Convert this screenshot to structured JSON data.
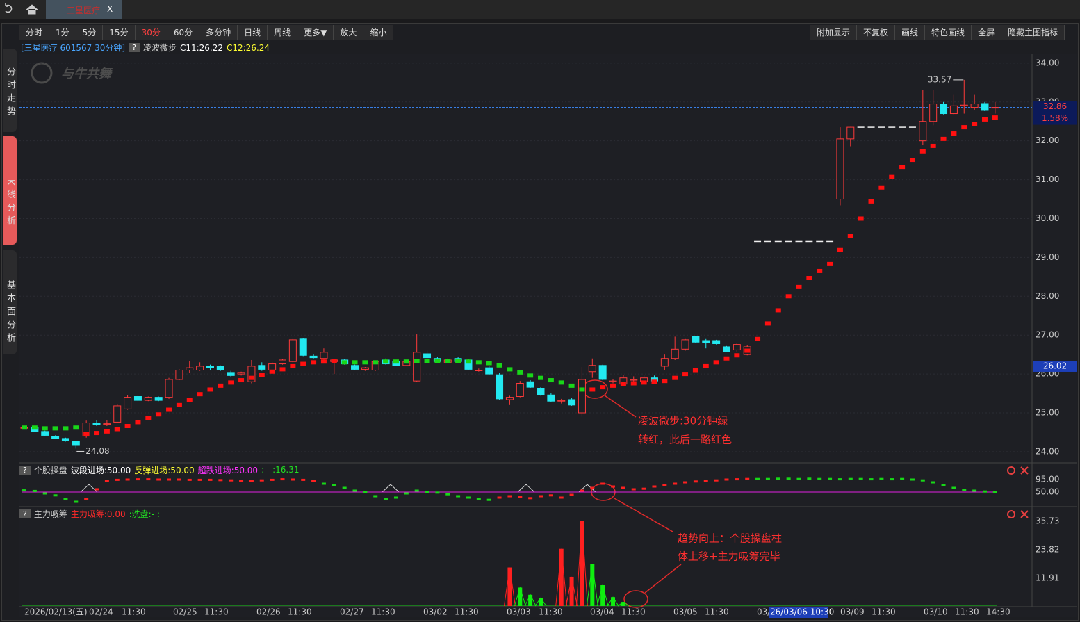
{
  "window": {
    "tab": "三星医疗",
    "close": "X"
  },
  "toolbar": {
    "left": [
      "分时",
      "1分",
      "5分",
      "15分",
      "30分",
      "60分",
      "多分钟",
      "日线",
      "周线",
      "更多▼",
      "放大",
      "缩小"
    ],
    "right": [
      "附加显示",
      "不复权",
      "画线",
      "特色画线",
      "全屏",
      "隐藏主图指标"
    ]
  },
  "side_tabs": [
    "分时走势",
    "K线分析",
    "基本面分析"
  ],
  "watermark": "与牛共舞",
  "chart_data": [
    {
      "type": "candlestick",
      "title": "[三星医疗 601567 30分钟]",
      "help": "?",
      "indicator": "凌波微步",
      "indicator_values": [
        "C11:26.22",
        "C12:26.24"
      ],
      "ylim": [
        23.73,
        34.23
      ],
      "yticks": [
        {
          "value": 24,
          "label": "24.00"
        },
        {
          "value": 25,
          "label": "25.00"
        },
        {
          "value": 26,
          "label": "26.00"
        },
        {
          "value": 27,
          "label": "27.00"
        },
        {
          "value": 28,
          "label": "28.00"
        },
        {
          "value": 29,
          "label": "29.00"
        },
        {
          "value": 30,
          "label": "30.00"
        },
        {
          "value": 31,
          "label": "31.00"
        },
        {
          "value": 32,
          "label": "32.00"
        },
        {
          "value": 33,
          "label": "33.00"
        },
        {
          "value": 34,
          "label": "34.00"
        }
      ],
      "last_price": 32.86,
      "change": "1.58%",
      "cursor_price": 26.02,
      "high_label": 33.57,
      "low_label": 24.08,
      "up_color": "#ff3a3a",
      "down_color": "#22e8f0",
      "trend_up_color": "#ff1010",
      "trend_down_color": "#19d619",
      "candles": [
        [
          24.62,
          24.66,
          24.58,
          24.62
        ],
        [
          24.62,
          24.64,
          24.5,
          24.52
        ],
        [
          24.52,
          24.54,
          24.4,
          24.42
        ],
        [
          24.4,
          24.42,
          24.32,
          24.34
        ],
        [
          24.34,
          24.36,
          24.26,
          24.28
        ],
        [
          24.26,
          24.28,
          24.08,
          24.16
        ],
        [
          24.4,
          24.8,
          24.36,
          24.74
        ],
        [
          24.74,
          24.82,
          24.66,
          24.7
        ],
        [
          24.7,
          24.82,
          24.66,
          24.72
        ],
        [
          24.76,
          25.22,
          24.74,
          25.18
        ],
        [
          25.1,
          25.45,
          25.08,
          25.4
        ],
        [
          25.42,
          25.44,
          25.3,
          25.32
        ],
        [
          25.32,
          25.42,
          25.3,
          25.4
        ],
        [
          25.4,
          25.42,
          25.3,
          25.32
        ],
        [
          25.4,
          25.9,
          25.36,
          25.86
        ],
        [
          25.86,
          26.12,
          25.84,
          26.1
        ],
        [
          26.1,
          26.34,
          26.02,
          26.16
        ],
        [
          26.1,
          26.3,
          26.08,
          26.2
        ],
        [
          26.2,
          26.24,
          26.1,
          26.16
        ],
        [
          26.2,
          26.22,
          26.08,
          26.1
        ],
        [
          26.04,
          26.08,
          25.92,
          25.96
        ],
        [
          26.0,
          26.06,
          25.96,
          26.04
        ],
        [
          25.8,
          26.36,
          25.76,
          26.2
        ],
        [
          26.22,
          26.3,
          26.08,
          26.12
        ],
        [
          26.1,
          26.3,
          26.06,
          26.26
        ],
        [
          26.26,
          26.38,
          26.24,
          26.36
        ],
        [
          26.32,
          26.9,
          26.3,
          26.88
        ],
        [
          26.9,
          26.92,
          26.46,
          26.48
        ],
        [
          26.46,
          26.5,
          26.4,
          26.42
        ],
        [
          26.4,
          26.66,
          26.36,
          26.56
        ],
        [
          26.32,
          26.38,
          26.0,
          26.36
        ],
        [
          26.36,
          26.38,
          26.24,
          26.26
        ],
        [
          26.22,
          26.24,
          26.1,
          26.12
        ],
        [
          26.12,
          26.18,
          26.08,
          26.16
        ],
        [
          26.1,
          26.34,
          26.08,
          26.32
        ],
        [
          26.36,
          26.4,
          26.24,
          26.26
        ],
        [
          26.32,
          26.34,
          26.2,
          26.22
        ],
        [
          26.22,
          26.36,
          26.2,
          26.32
        ],
        [
          25.82,
          27.02,
          25.8,
          26.56
        ],
        [
          26.52,
          26.6,
          26.4,
          26.42
        ],
        [
          26.4,
          26.44,
          26.3,
          26.32
        ],
        [
          26.3,
          26.4,
          26.28,
          26.36
        ],
        [
          26.4,
          26.44,
          26.3,
          26.32
        ],
        [
          26.36,
          26.38,
          26.1,
          26.12
        ],
        [
          26.1,
          26.14,
          26.06,
          26.1
        ],
        [
          26.16,
          26.2,
          25.98,
          26.0
        ],
        [
          25.98,
          26.02,
          25.34,
          25.36
        ],
        [
          25.34,
          25.44,
          25.2,
          25.4
        ],
        [
          25.42,
          25.82,
          25.4,
          25.76
        ],
        [
          25.8,
          25.84,
          25.64,
          25.66
        ],
        [
          25.62,
          25.66,
          25.44,
          25.46
        ],
        [
          25.46,
          25.5,
          25.28,
          25.3
        ],
        [
          25.3,
          25.36,
          25.24,
          25.32
        ],
        [
          25.34,
          25.38,
          25.18,
          25.2
        ],
        [
          25.0,
          26.18,
          24.9,
          25.86
        ],
        [
          26.06,
          26.4,
          25.9,
          26.22
        ],
        [
          26.22,
          26.24,
          25.84,
          25.86
        ],
        [
          25.8,
          25.86,
          25.76,
          25.82
        ],
        [
          25.74,
          25.98,
          25.72,
          25.9
        ],
        [
          25.84,
          25.94,
          25.8,
          25.86
        ],
        [
          25.8,
          25.96,
          25.78,
          25.9
        ],
        [
          25.9,
          25.96,
          25.78,
          25.82
        ],
        [
          26.2,
          26.5,
          26.1,
          26.4
        ],
        [
          26.4,
          26.96,
          26.36,
          26.64
        ],
        [
          26.64,
          26.9,
          26.6,
          26.88
        ],
        [
          26.96,
          26.98,
          26.8,
          26.82
        ],
        [
          26.86,
          26.9,
          26.66,
          26.8
        ],
        [
          26.86,
          26.88,
          26.76,
          26.78
        ],
        [
          26.7,
          26.72,
          26.56,
          26.58
        ],
        [
          26.62,
          26.8,
          26.56,
          26.76
        ],
        [
          26.5,
          26.74,
          26.48,
          26.7
        ],
        [
          29.41,
          29.41,
          29.41,
          29.41
        ],
        [
          29.41,
          29.41,
          29.41,
          29.41
        ],
        [
          29.41,
          29.41,
          29.41,
          29.41
        ],
        [
          29.41,
          29.41,
          29.41,
          29.41
        ],
        [
          29.41,
          29.41,
          29.41,
          29.41
        ],
        [
          29.41,
          29.41,
          29.41,
          29.41
        ],
        [
          29.41,
          29.41,
          29.41,
          29.41
        ],
        [
          29.41,
          29.41,
          29.41,
          29.41
        ],
        [
          30.5,
          32.35,
          30.34,
          32.05
        ],
        [
          32.05,
          32.36,
          31.86,
          32.35
        ],
        [
          32.35,
          32.35,
          32.35,
          32.35
        ],
        [
          32.35,
          32.35,
          32.35,
          32.35
        ],
        [
          32.35,
          32.35,
          32.35,
          32.35
        ],
        [
          32.35,
          32.35,
          32.35,
          32.35
        ],
        [
          32.35,
          32.35,
          32.35,
          32.35
        ],
        [
          32.35,
          32.35,
          32.35,
          32.35
        ],
        [
          32.0,
          33.3,
          31.9,
          32.5
        ],
        [
          32.5,
          33.3,
          32.4,
          32.95
        ],
        [
          32.95,
          33.0,
          32.68,
          32.7
        ],
        [
          32.7,
          33.2,
          32.66,
          32.9
        ],
        [
          32.9,
          33.57,
          32.7,
          32.92
        ],
        [
          32.86,
          33.2,
          32.8,
          32.95
        ],
        [
          32.96,
          33.0,
          32.78,
          32.8
        ],
        [
          32.86,
          33.0,
          32.7,
          32.86
        ]
      ],
      "trend_up": [
        null,
        null,
        null,
        null,
        null,
        null,
        24.45,
        24.48,
        24.52,
        24.58,
        24.66,
        24.76,
        24.86,
        24.96,
        25.08,
        25.2,
        25.34,
        25.48,
        25.6,
        25.7,
        25.78,
        25.84,
        25.9,
        25.98,
        26.06,
        26.12,
        26.2,
        26.26,
        26.3,
        26.32,
        26.34,
        null,
        null,
        null,
        null,
        null,
        null,
        null,
        null,
        null,
        null,
        null,
        null,
        null,
        null,
        null,
        null,
        null,
        null,
        null,
        null,
        null,
        null,
        null,
        null,
        25.6,
        25.66,
        25.7,
        25.74,
        25.76,
        25.78,
        25.8,
        25.82,
        25.9,
        26.0,
        26.1,
        26.2,
        26.3,
        26.4,
        26.48,
        26.6,
        26.9,
        27.3,
        27.64,
        28.0,
        28.24,
        28.47,
        28.65,
        28.83,
        29.19,
        29.55,
        30.0,
        30.44,
        30.8,
        31.07,
        31.33,
        31.51,
        31.73,
        31.87,
        32.05,
        32.19,
        32.35,
        32.44,
        32.55,
        32.6
      ],
      "trend_down": [
        24.62,
        24.62,
        24.6,
        24.6,
        24.6,
        24.62,
        null,
        null,
        null,
        null,
        null,
        null,
        null,
        null,
        null,
        null,
        null,
        null,
        null,
        null,
        null,
        null,
        null,
        null,
        null,
        null,
        null,
        null,
        null,
        null,
        null,
        26.3,
        26.3,
        26.3,
        26.3,
        26.32,
        26.32,
        26.32,
        26.34,
        26.34,
        26.34,
        26.34,
        26.34,
        26.32,
        26.3,
        26.28,
        26.22,
        26.12,
        26.04,
        25.96,
        25.9,
        25.84,
        25.78,
        25.7,
        25.6,
        null,
        null,
        null,
        null,
        null,
        null,
        null,
        null,
        null,
        null,
        null,
        null,
        null,
        null,
        null,
        null,
        null,
        null,
        null,
        null,
        null,
        null,
        null,
        null,
        null,
        null,
        null,
        null,
        null,
        null,
        null,
        null,
        null,
        null,
        null,
        null,
        null,
        null,
        null,
        null
      ],
      "x_labels": [
        "2026/02/13(五)",
        "02/24",
        "11:30",
        "02/25",
        "11:30",
        "02/26",
        "11:30",
        "02/27",
        "11:30",
        "03/02",
        "11:30",
        "03/03",
        "11:30",
        "03/04",
        "11:30",
        "03/05",
        "11:30",
        "03/",
        "26/03/06 10:30",
        "03/09",
        "11:30",
        "03/10",
        "11:30",
        "14:30"
      ],
      "annotations": [
        "凌波微步:30分钟绿",
        "转红，此后一路红色"
      ]
    },
    {
      "type": "dots",
      "help": "?",
      "name": "个股操盘",
      "legend": [
        "波段进场:50.00",
        "反弹进场:50.00",
        "超跌进场:50.00",
        ": - :16.31"
      ],
      "ylim": [
        0,
        105
      ],
      "yticks": [
        {
          "value": 95,
          "label": "95.00"
        },
        {
          "value": 50,
          "label": "50.00"
        }
      ],
      "baseline": 50,
      "rise": [
        null,
        null,
        null,
        null,
        null,
        null,
        25,
        60,
        90,
        94,
        95,
        96,
        96,
        95,
        95,
        95,
        94,
        94,
        94,
        93,
        92,
        90,
        90,
        92,
        94,
        96,
        95,
        94,
        90,
        null,
        null,
        null,
        null,
        null,
        null,
        null,
        null,
        null,
        null,
        null,
        null,
        null,
        null,
        null,
        null,
        null,
        30,
        35,
        32,
        28,
        35,
        38,
        30,
        40,
        55,
        65,
        80,
        70,
        65,
        60,
        62,
        70,
        75,
        80,
        85,
        88,
        90,
        92,
        95,
        96,
        97,
        null,
        null,
        null,
        null,
        null,
        null,
        null,
        null,
        null,
        null,
        null,
        null,
        null,
        null,
        null,
        null,
        null,
        null,
        null,
        null,
        null,
        null,
        null,
        null
      ],
      "fall": [
        56,
        54,
        45,
        38,
        25,
        15,
        null,
        null,
        null,
        null,
        null,
        null,
        null,
        null,
        null,
        null,
        null,
        null,
        null,
        null,
        null,
        null,
        null,
        null,
        null,
        null,
        null,
        null,
        null,
        80,
        75,
        65,
        55,
        50,
        35,
        25,
        30,
        45,
        55,
        50,
        48,
        42,
        35,
        30,
        25,
        22,
        null,
        null,
        null,
        null,
        null,
        null,
        null,
        null,
        null,
        null,
        null,
        null,
        null,
        null,
        null,
        null,
        null,
        null,
        null,
        null,
        null,
        null,
        null,
        null,
        null,
        97,
        97,
        98,
        98,
        97,
        98,
        97,
        97,
        96,
        97,
        97,
        96,
        97,
        96,
        97,
        95,
        92,
        85,
        75,
        65,
        58,
        55,
        52,
        50
      ]
    },
    {
      "type": "spikes",
      "help": "?",
      "name": "主力吸筹",
      "legend": [
        "主力吸筹:0.00",
        ":洗盘:- :"
      ],
      "ylim": [
        0,
        35.73
      ],
      "yticks": [
        35.73,
        23.82,
        11.91
      ],
      "series": [
        {
          "color": "#ff2020",
          "x": [
            47,
            52,
            53,
            54
          ],
          "values": [
            16.4,
            24.2,
            12.5,
            35.73
          ]
        },
        {
          "color": "#10ee10",
          "x": [
            48,
            49,
            50,
            55,
            56,
            57,
            58
          ],
          "values": [
            8,
            5,
            3.7,
            18,
            9,
            4,
            2
          ]
        }
      ],
      "annotations": [
        "趋势向上：个股操盘柱",
        "体上移+主力吸筹完毕"
      ]
    }
  ]
}
